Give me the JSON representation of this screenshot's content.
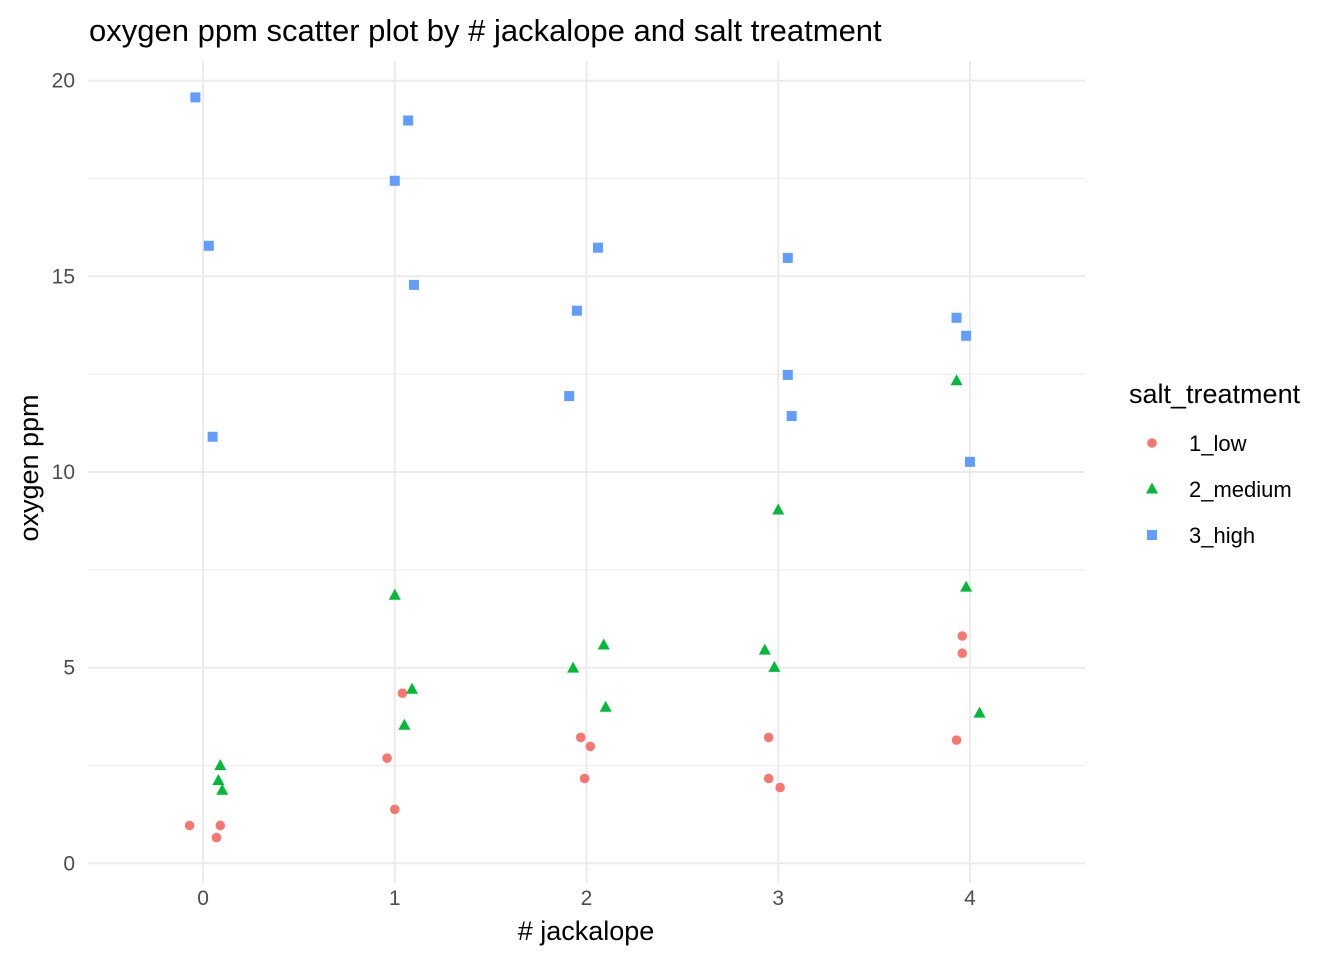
{
  "chart_data": {
    "type": "scatter",
    "title": "oxygen ppm scatter plot by # jackalope and salt treatment",
    "xlabel": "# jackalope",
    "ylabel": "oxygen ppm",
    "xlim": [
      -0.6,
      4.6
    ],
    "ylim": [
      -0.5,
      20.5
    ],
    "xticks": [
      0,
      1,
      2,
      3,
      4
    ],
    "yticks": [
      0,
      5,
      10,
      15,
      20
    ],
    "grid": true,
    "legend": {
      "title": "salt_treatment",
      "placement": "right"
    },
    "series": [
      {
        "name": "1_low",
        "color": "#F8766D",
        "shape": "circle",
        "points": [
          [
            -0.07,
            0.97
          ],
          [
            0.07,
            0.66
          ],
          [
            0.09,
            0.97
          ],
          [
            0.96,
            2.69
          ],
          [
            1.0,
            1.38
          ],
          [
            1.04,
            4.35
          ],
          [
            1.97,
            3.22
          ],
          [
            2.02,
            2.99
          ],
          [
            1.99,
            2.17
          ],
          [
            2.95,
            3.22
          ],
          [
            2.95,
            2.17
          ],
          [
            3.01,
            1.94
          ],
          [
            3.96,
            5.81
          ],
          [
            3.96,
            5.37
          ],
          [
            3.93,
            3.15
          ]
        ]
      },
      {
        "name": "2_medium",
        "color": "#00BA38",
        "shape": "triangle",
        "points": [
          [
            0.09,
            2.5
          ],
          [
            0.08,
            2.12
          ],
          [
            0.1,
            1.87
          ],
          [
            1.0,
            6.85
          ],
          [
            1.09,
            4.45
          ],
          [
            1.05,
            3.53
          ],
          [
            1.93,
            4.99
          ],
          [
            2.09,
            5.58
          ],
          [
            2.1,
            3.99
          ],
          [
            2.93,
            5.45
          ],
          [
            2.98,
            5.01
          ],
          [
            3.0,
            9.03
          ],
          [
            3.93,
            12.33
          ],
          [
            3.98,
            7.06
          ],
          [
            4.05,
            3.84
          ]
        ]
      },
      {
        "name": "3_high",
        "color": "#619CFF",
        "shape": "square",
        "points": [
          [
            -0.04,
            19.57
          ],
          [
            0.03,
            15.78
          ],
          [
            0.05,
            10.9
          ],
          [
            1.07,
            18.98
          ],
          [
            1.0,
            17.44
          ],
          [
            1.1,
            14.78
          ],
          [
            2.06,
            15.73
          ],
          [
            1.95,
            14.12
          ],
          [
            1.91,
            11.94
          ],
          [
            3.05,
            15.47
          ],
          [
            3.05,
            12.48
          ],
          [
            3.07,
            11.43
          ],
          [
            3.93,
            13.94
          ],
          [
            3.98,
            13.48
          ],
          [
            4.0,
            10.26
          ]
        ]
      }
    ]
  }
}
